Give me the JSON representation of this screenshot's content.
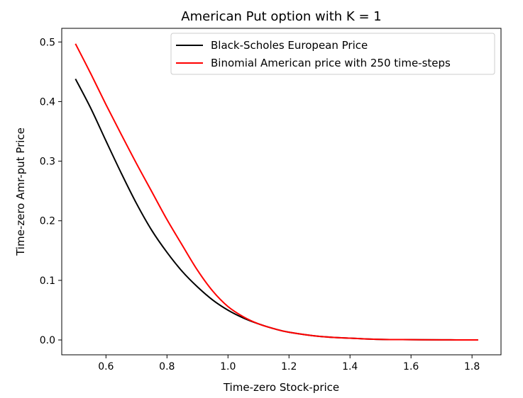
{
  "chart_data": {
    "type": "line",
    "title": "American Put option with K = 1",
    "xlabel": "Time-zero Stock-price",
    "ylabel": "Time-zero Amr-put Price",
    "xlim": [
      0.455,
      1.895
    ],
    "ylim": [
      -0.0249,
      0.5229
    ],
    "xticks": [
      0.6,
      0.8,
      1.0,
      1.2,
      1.4,
      1.6,
      1.8
    ],
    "yticks": [
      0.0,
      0.1,
      0.2,
      0.3,
      0.4,
      0.5
    ],
    "xtick_labels": [
      "0.6",
      "0.8",
      "1.0",
      "1.2",
      "1.4",
      "1.6",
      "1.8"
    ],
    "ytick_labels": [
      "0.0",
      "0.1",
      "0.2",
      "0.3",
      "0.4",
      "0.5"
    ],
    "grid": false,
    "legend_position": "upper-right",
    "series": [
      {
        "name": "Black-Scholes European Price",
        "color": "#000000",
        "x": [
          0.5,
          0.55,
          0.6,
          0.65,
          0.7,
          0.75,
          0.8,
          0.85,
          0.9,
          0.95,
          1.0,
          1.05,
          1.1,
          1.15,
          1.2,
          1.3,
          1.4,
          1.5,
          1.6,
          1.7,
          1.82
        ],
        "y": [
          0.438,
          0.389,
          0.334,
          0.28,
          0.229,
          0.184,
          0.147,
          0.115,
          0.089,
          0.067,
          0.05,
          0.037,
          0.027,
          0.019,
          0.013,
          0.006,
          0.003,
          0.001,
          0.0005,
          0.0002,
          0.0
        ]
      },
      {
        "name": "Binomial American price with 250 time-steps",
        "color": "#ff0000",
        "x": [
          0.5,
          0.55,
          0.6,
          0.65,
          0.7,
          0.75,
          0.8,
          0.85,
          0.9,
          0.95,
          1.0,
          1.05,
          1.1,
          1.15,
          1.2,
          1.3,
          1.4,
          1.5,
          1.6,
          1.7,
          1.82
        ],
        "y": [
          0.497,
          0.447,
          0.395,
          0.345,
          0.296,
          0.249,
          0.202,
          0.159,
          0.117,
          0.082,
          0.056,
          0.039,
          0.027,
          0.019,
          0.013,
          0.006,
          0.003,
          0.001,
          0.0005,
          0.0002,
          0.0
        ]
      }
    ]
  }
}
